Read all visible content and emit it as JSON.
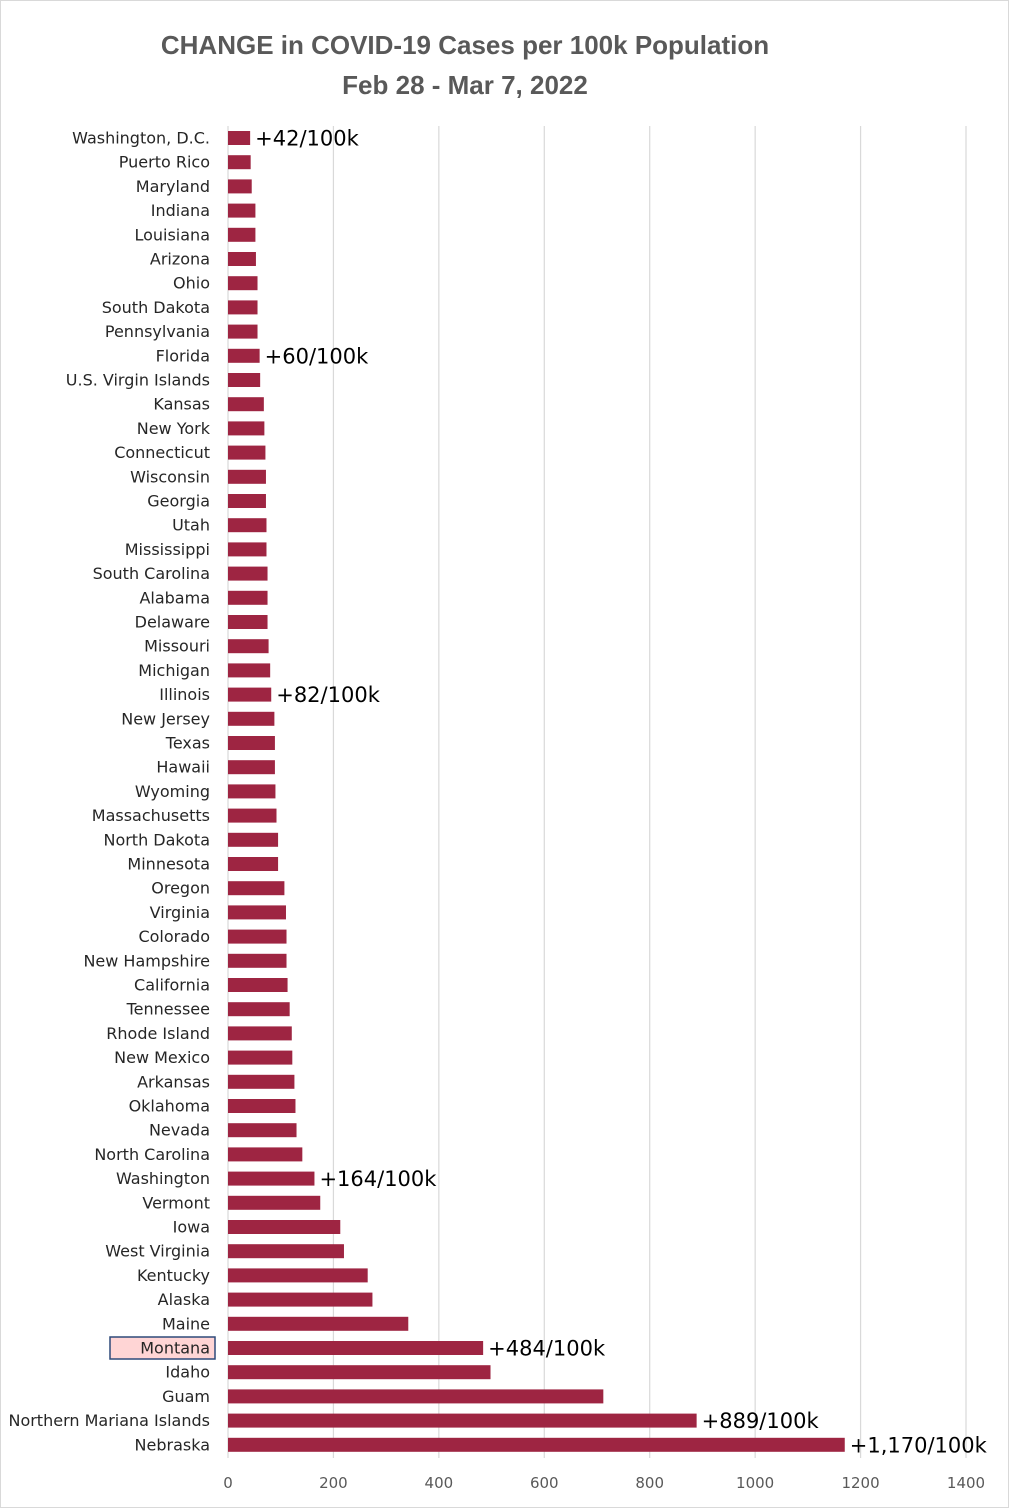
{
  "colors": {
    "bar": "#9e2542",
    "gridline": "#d9d9d9",
    "highlight_fill": "#ffd5d5",
    "highlight_border": "#2f4a7a"
  },
  "chart_data": {
    "type": "bar",
    "orientation": "horizontal",
    "title": "CHANGE in COVID-19 Cases per 100k Population",
    "subtitle": "Feb 28 - Mar 7, 2022",
    "xlabel": "",
    "ylabel": "",
    "xlim": [
      0,
      1400
    ],
    "xticks": [
      0,
      200,
      400,
      600,
      800,
      1000,
      1200,
      1400
    ],
    "grid": "vertical",
    "legend": "none",
    "highlighted_category": "Montana",
    "categories": [
      "Washington, D.C.",
      "Puerto Rico",
      "Maryland",
      "Indiana",
      "Louisiana",
      "Arizona",
      "Ohio",
      "South Dakota",
      "Pennsylvania",
      "Florida",
      "U.S. Virgin Islands",
      "Kansas",
      "New York",
      "Connecticut",
      "Wisconsin",
      "Georgia",
      "Utah",
      "Mississippi",
      "South Carolina",
      "Alabama",
      "Delaware",
      "Missouri",
      "Michigan",
      "Illinois",
      "New Jersey",
      "Texas",
      "Hawaii",
      "Wyoming",
      "Massachusetts",
      "North Dakota",
      "Minnesota",
      "Oregon",
      "Virginia",
      "Colorado",
      "New Hampshire",
      "California",
      "Tennessee",
      "Rhode Island",
      "New Mexico",
      "Arkansas",
      "Oklahoma",
      "Nevada",
      "North Carolina",
      "Washington",
      "Vermont",
      "Iowa",
      "West Virginia",
      "Kentucky",
      "Alaska",
      "Maine",
      "Montana",
      "Idaho",
      "Guam",
      "Northern Mariana Islands",
      "Nebraska"
    ],
    "values": [
      42,
      43,
      45,
      52,
      52,
      53,
      56,
      56,
      56,
      60,
      61,
      68,
      69,
      71,
      72,
      72,
      73,
      73,
      75,
      75,
      75,
      77,
      80,
      82,
      88,
      89,
      89,
      90,
      92,
      95,
      95,
      107,
      110,
      111,
      111,
      113,
      117,
      121,
      122,
      126,
      128,
      130,
      141,
      164,
      175,
      213,
      220,
      265,
      274,
      342,
      484,
      498,
      712,
      889,
      1170
    ],
    "data_labels": [
      {
        "category": "Washington, D.C.",
        "text": "+42/100k"
      },
      {
        "category": "Florida",
        "text": "+60/100k"
      },
      {
        "category": "Illinois",
        "text": "+82/100k"
      },
      {
        "category": "Washington",
        "text": "+164/100k"
      },
      {
        "category": "Montana",
        "text": "+484/100k"
      },
      {
        "category": "Northern Mariana Islands",
        "text": "+889/100k"
      },
      {
        "category": "Nebraska",
        "text": "+1,170/100k"
      }
    ]
  }
}
